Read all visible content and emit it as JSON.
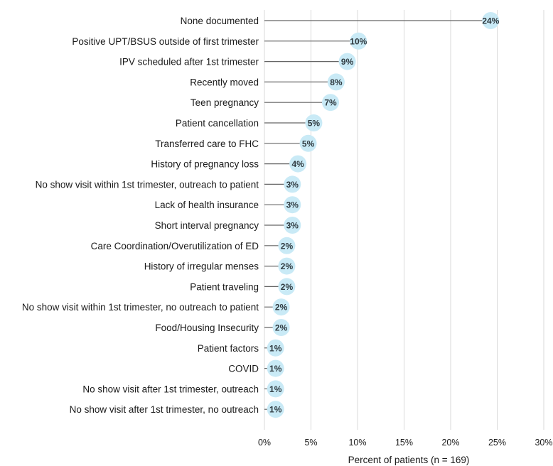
{
  "chart_data": {
    "type": "lollipop",
    "title": "",
    "xlabel": "Percent of patients (n = 169)",
    "ylabel": "",
    "xlim": [
      0,
      30
    ],
    "x_ticks": [
      0,
      5,
      10,
      15,
      20,
      25,
      30
    ],
    "x_tick_labels": [
      "0%",
      "5%",
      "10%",
      "15%",
      "20%",
      "25%",
      "30%"
    ],
    "grid": true,
    "colors": {
      "marker": "#c9eaf6",
      "stem": "#666666",
      "grid": "#d9d9d9",
      "label": "#2f3a40"
    },
    "categories": [
      "None documented",
      "Positive UPT/BSUS outside of first trimester",
      "IPV scheduled after 1st trimester",
      "Recently moved",
      "Teen pregnancy",
      "Patient cancellation",
      "Transferred care to FHC",
      "History of pregnancy loss",
      "No show visit within 1st trimester, outreach to patient",
      "Lack of health insurance",
      "Short interval pregnancy",
      "Care Coordination/Overutilization of ED",
      "History of irregular menses",
      "Patient traveling",
      "No show visit within 1st trimester, no outreach to patient",
      "Food/Housing Insecurity",
      "Patient factors",
      "COVID",
      "No show visit after 1st trimester, outreach",
      "No show visit after 1st trimester, no outreach"
    ],
    "values": [
      24.3,
      10.1,
      8.9,
      7.7,
      7.1,
      5.3,
      4.7,
      3.6,
      3.0,
      3.0,
      3.0,
      2.4,
      2.4,
      2.4,
      1.8,
      1.8,
      1.2,
      1.2,
      1.2,
      1.2
    ],
    "data_labels": [
      "24%",
      "10%",
      "9%",
      "8%",
      "7%",
      "5%",
      "5%",
      "4%",
      "3%",
      "3%",
      "3%",
      "2%",
      "2%",
      "2%",
      "2%",
      "2%",
      "1%",
      "1%",
      "1%",
      "1%"
    ]
  }
}
